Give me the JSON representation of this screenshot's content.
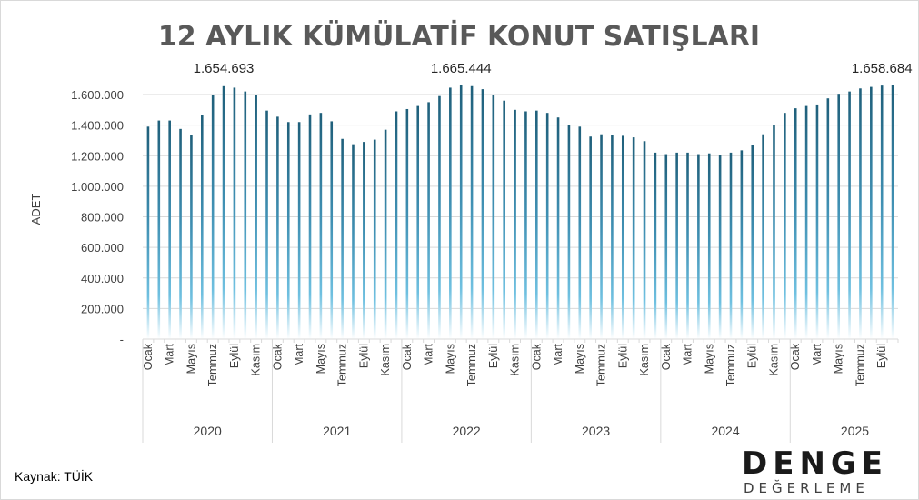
{
  "chart_data": {
    "type": "bar",
    "title": "12 AYLIK KÜMÜLATİF KONUT SATIŞLARI",
    "ylabel": "ADET",
    "ylim": [
      0,
      1800000
    ],
    "yticks": [
      "-",
      "200.000",
      "400.000",
      "600.000",
      "800.000",
      "1.000.000",
      "1.200.000",
      "1.400.000",
      "1.600.000"
    ],
    "grid": true,
    "month_tick_labels": [
      "Ocak",
      "Mart",
      "Mayıs",
      "Temmuz",
      "Eylül",
      "Kasım"
    ],
    "years": [
      "2020",
      "2021",
      "2022",
      "2023",
      "2024",
      "2025"
    ],
    "values": [
      1390000,
      1430000,
      1430000,
      1375000,
      1335000,
      1465000,
      1595000,
      1654693,
      1645000,
      1620000,
      1595000,
      1495000,
      1455000,
      1420000,
      1420000,
      1470000,
      1480000,
      1425000,
      1310000,
      1275000,
      1290000,
      1305000,
      1370000,
      1490000,
      1505000,
      1525000,
      1550000,
      1590000,
      1645000,
      1665444,
      1655000,
      1635000,
      1600000,
      1560000,
      1500000,
      1490000,
      1495000,
      1480000,
      1450000,
      1400000,
      1390000,
      1325000,
      1340000,
      1335000,
      1330000,
      1320000,
      1295000,
      1220000,
      1210000,
      1220000,
      1220000,
      1210000,
      1215000,
      1205000,
      1220000,
      1235000,
      1270000,
      1340000,
      1400000,
      1480000,
      1510000,
      1525000,
      1535000,
      1575000,
      1605000,
      1620000,
      1640000,
      1650000,
      1658684,
      1660000
    ],
    "annotations": [
      {
        "index": 7,
        "label": "1.654.693"
      },
      {
        "index": 29,
        "label": "1.665.444"
      },
      {
        "index": 68,
        "label": "1.658.684"
      }
    ]
  },
  "source": "Kaynak: TÜİK",
  "logo": {
    "word": "DENGE",
    "sub": "DEĞERLEME"
  },
  "colors": {
    "bar_dark": "#1f5f7a",
    "bar_light": "#5fb3d6",
    "grid": "#d9d9d9"
  }
}
